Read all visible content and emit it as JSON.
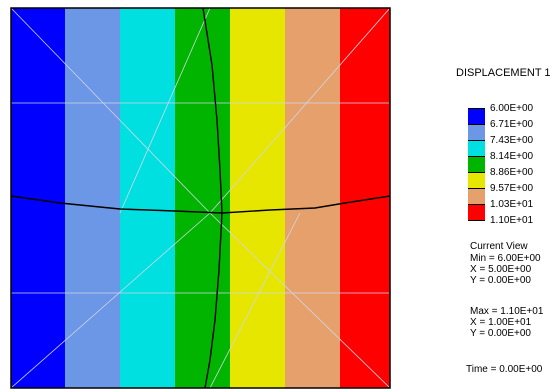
{
  "legend": {
    "title": "DISPLACEMENT 1",
    "levels": [
      {
        "label": "6.00E+00",
        "color": "#0000ff"
      },
      {
        "label": "6.71E+00",
        "color": "#6c96e6"
      },
      {
        "label": "7.43E+00",
        "color": "#00e0e0"
      },
      {
        "label": "8.14E+00",
        "color": "#00b400"
      },
      {
        "label": "8.86E+00",
        "color": "#e6e600"
      },
      {
        "label": "9.57E+00",
        "color": "#e6a06c"
      },
      {
        "label": "1.03E+01",
        "color": "#ff0000"
      },
      {
        "label": "1.10E+01",
        "color": null
      }
    ]
  },
  "info": {
    "view_label": "Current View",
    "min_line": "Min =  6.00E+00",
    "min_x": "X = 5.00E+00",
    "min_y": "Y = 0.00E+00",
    "max_line": "Max =  1.10E+01",
    "max_x": "X = 1.00E+01",
    "max_y": "Y = 0.00E+00",
    "time": "Time = 0.00E+00"
  },
  "plot": {
    "bands": [
      "#0000ff",
      "#6c96e6",
      "#00e0e0",
      "#00b400",
      "#e6e600",
      "#e6a06c",
      "#ff0000"
    ],
    "band_boundaries_x": [
      0,
      65,
      120,
      175,
      230,
      285,
      340,
      400
    ]
  }
}
